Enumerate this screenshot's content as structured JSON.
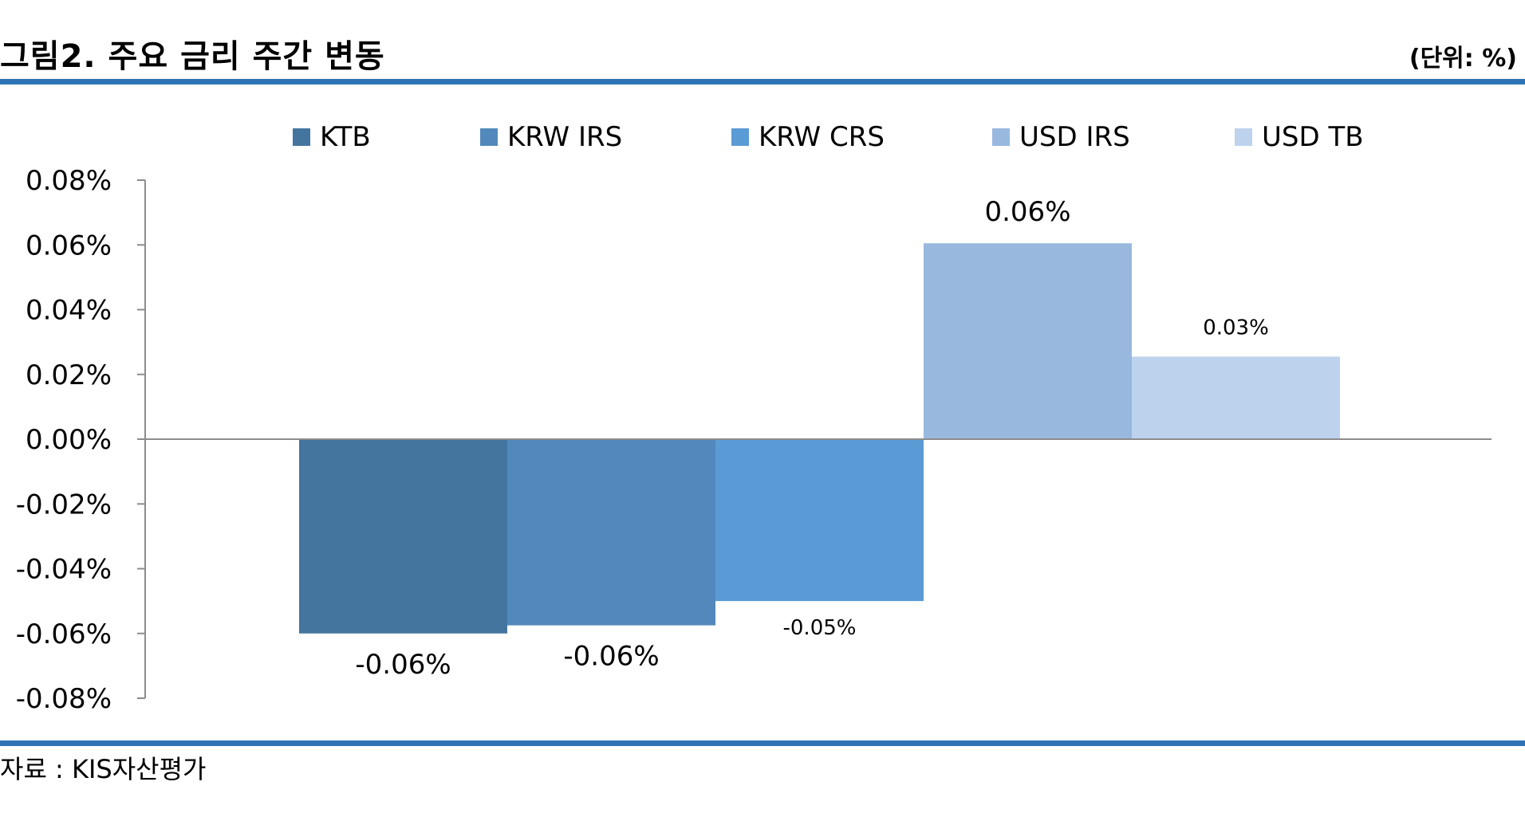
{
  "header": {
    "title": "그림2. 주요 금리 주간 변동",
    "unit": "(단위: %)"
  },
  "footer": {
    "source": "자료 : KIS자산평가"
  },
  "colors": {
    "rule": "#2e74b5",
    "axis": "#8c8c8c"
  },
  "chart_data": {
    "type": "bar",
    "categories": [
      "KTB",
      "KRW IRS",
      "KRW CRS",
      "USD IRS",
      "USD TB"
    ],
    "values": [
      -0.06,
      -0.0575,
      -0.05,
      0.0605,
      0.0255
    ],
    "data_labels": [
      "-0.06%",
      "-0.06%",
      "-0.05%",
      "0.06%",
      "0.03%"
    ],
    "colors": [
      "#44759f",
      "#5289bc",
      "#5b9bd5",
      "#98b8de",
      "#bdd2ec"
    ],
    "legend": [
      "KTB",
      "KRW IRS",
      "KRW CRS",
      "USD IRS",
      "USD TB"
    ],
    "legend_position": "top",
    "ylim": [
      -0.08,
      0.08
    ],
    "yticks": [
      0.08,
      0.06,
      0.04,
      0.02,
      0.0,
      -0.02,
      -0.04,
      -0.06,
      -0.08
    ],
    "ytick_labels": [
      "0.08%",
      "0.06%",
      "0.04%",
      "0.02%",
      "0.00%",
      "-0.02%",
      "-0.04%",
      "-0.06%",
      "-0.08%"
    ],
    "grid": false,
    "xlabel": "",
    "ylabel": ""
  }
}
